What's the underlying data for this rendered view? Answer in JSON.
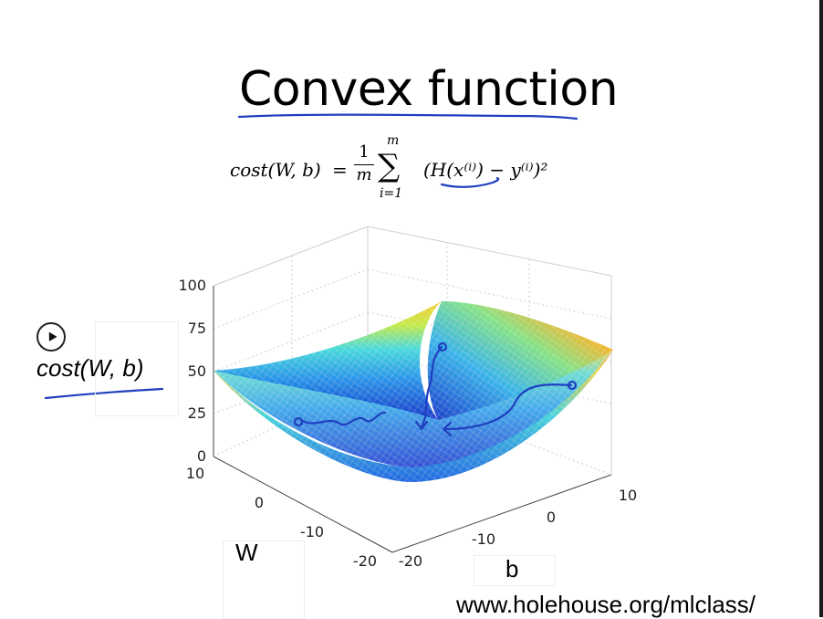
{
  "slide": {
    "title": "Convex function",
    "formula": {
      "lhs": "cost(W, b)",
      "eq": "=",
      "frac_num": "1",
      "frac_den": "m",
      "sigma": "∑",
      "sum_upper": "m",
      "sum_lower": "i=1",
      "body": "(H(x⁽ⁱ⁾) − y⁽ⁱ⁾)²"
    },
    "overlay_labels": {
      "cost": "cost(W, b)",
      "w": "W",
      "b": "b",
      "url": "www.holehouse.org/mlclass/"
    },
    "annotation_color": "#1f3fbf"
  },
  "chart_data": {
    "type": "surface",
    "z_ticks": [
      "0",
      "25",
      "50",
      "75",
      "100"
    ],
    "w_ticks": [
      "10",
      "0",
      "-10",
      "-20"
    ],
    "b_ticks": [
      "-20",
      "-10",
      "0",
      "10"
    ],
    "zlim": [
      0,
      100
    ],
    "wlim": [
      -20,
      10
    ],
    "blim": [
      -20,
      10
    ],
    "colormap": [
      "#1030c8",
      "#20a0e8",
      "#40e0d0",
      "#c8e840",
      "#f8c820",
      "#f06020",
      "#e01010"
    ]
  }
}
